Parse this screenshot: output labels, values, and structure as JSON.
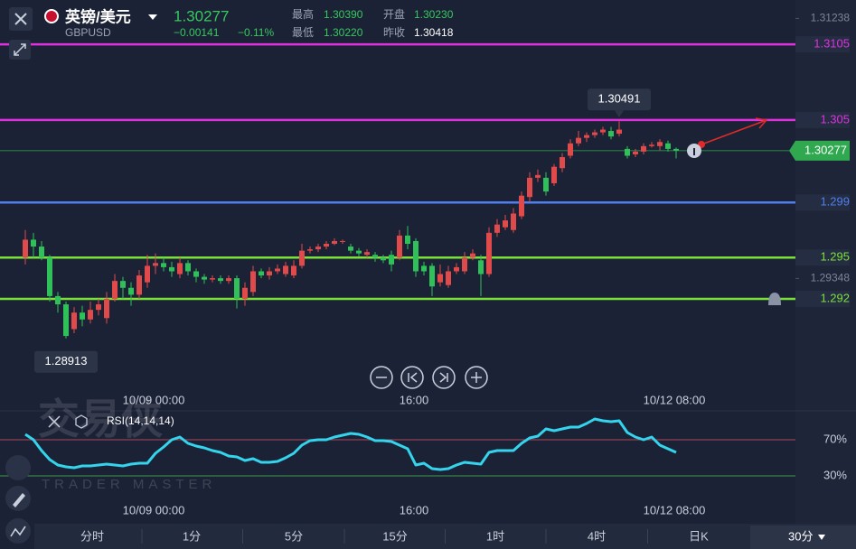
{
  "header": {
    "symbol": "英镑/美元",
    "code": "GBPUSD",
    "price": "1.30277",
    "change": "−0.00141",
    "change_pct": "−0.11%",
    "stats": [
      {
        "label": "最高",
        "value": "1.30390"
      },
      {
        "label": "开盘",
        "value": "1.30230"
      },
      {
        "label": "最低",
        "value": "1.30220"
      },
      {
        "label": "昨收",
        "value": "1.30418"
      }
    ]
  },
  "chart_data": {
    "type": "candlestick",
    "categories": [
      null,
      null,
      null,
      null,
      null,
      null,
      null,
      null,
      null,
      null,
      null,
      null,
      null,
      null,
      null,
      null,
      "10/09 00:00",
      null,
      null,
      null,
      null,
      null,
      null,
      null,
      null,
      null,
      null,
      null,
      null,
      null,
      null,
      null,
      null,
      null,
      null,
      null,
      null,
      null,
      null,
      null,
      null,
      null,
      null,
      null,
      null,
      null,
      null,
      null,
      "16:00",
      null,
      null,
      null,
      null,
      null,
      null,
      null,
      null,
      null,
      null,
      null,
      null,
      null,
      null,
      null,
      null,
      null,
      null,
      null,
      null,
      null,
      null,
      null,
      null,
      null,
      null,
      null,
      null,
      null,
      null,
      null,
      "10/12 08:00"
    ],
    "open": [
      1.295,
      1.2963,
      1.2958,
      1.295,
      1.2922,
      1.2916,
      1.2898,
      1.291,
      1.2905,
      1.2912,
      1.2906,
      1.292,
      1.2933,
      1.2928,
      1.2923,
      1.2932,
      1.2944,
      1.2946,
      1.2943,
      1.2938,
      1.2946,
      1.294,
      1.2936,
      1.2934,
      1.2935,
      1.2933,
      1.2935,
      1.292,
      1.2925,
      1.294,
      1.2937,
      1.294,
      1.2938,
      1.2937,
      1.2944,
      1.2955,
      1.2956,
      1.2958,
      1.296,
      1.2962,
      1.2958,
      1.2955,
      1.2952,
      1.2952,
      1.295,
      1.2952,
      1.295,
      1.2966,
      1.2962,
      1.2944,
      1.2944,
      1.2932,
      1.293,
      1.294,
      1.294,
      1.295,
      1.2948,
      1.2938,
      1.2968,
      1.2972,
      1.297,
      1.298,
      1.2994,
      1.3008,
      1.3008,
      1.3004,
      1.3015,
      1.3024,
      1.3033,
      1.3037,
      1.3039,
      1.3041,
      1.3042,
      1.304,
      1.3029,
      1.3025,
      1.3027,
      1.3031,
      1.3031,
      1.3033,
      1.3029
    ],
    "high": [
      1.297,
      1.2968,
      1.2962,
      1.2952,
      1.2925,
      1.2918,
      1.2914,
      1.2915,
      1.2918,
      1.292,
      1.2925,
      1.2938,
      1.2936,
      1.2932,
      1.2941,
      1.2952,
      1.2953,
      1.295,
      1.2947,
      1.295,
      1.2948,
      1.2942,
      1.2938,
      1.2937,
      1.2937,
      1.2937,
      1.2937,
      1.2932,
      1.2944,
      1.2942,
      1.2943,
      1.2945,
      1.2947,
      1.2948,
      1.296,
      1.2958,
      1.296,
      1.2962,
      1.2964,
      1.2963,
      1.296,
      1.2957,
      1.2956,
      1.2954,
      1.2952,
      1.2955,
      1.297,
      1.2973,
      1.2964,
      1.2947,
      1.2946,
      1.2945,
      1.2944,
      1.2946,
      1.2954,
      1.2956,
      1.2952,
      1.2972,
      1.2978,
      1.2981,
      1.2986,
      1.2998,
      1.3012,
      1.3014,
      1.3012,
      1.3018,
      1.3026,
      1.3036,
      1.3042,
      1.3041,
      1.3043,
      1.3045,
      1.3045,
      1.30491,
      1.3031,
      1.3029,
      1.3033,
      1.3034,
      1.3036,
      1.3035,
      1.303
    ],
    "low": [
      1.2945,
      1.295,
      1.2948,
      1.2918,
      1.291,
      1.28913,
      1.2895,
      1.29,
      1.2902,
      1.2908,
      1.2902,
      1.2918,
      1.292,
      1.2915,
      1.292,
      1.2928,
      1.2938,
      1.294,
      1.2936,
      1.2935,
      1.2937,
      1.2932,
      1.2931,
      1.2932,
      1.2931,
      1.2931,
      1.2913,
      1.2915,
      1.2922,
      1.2935,
      1.2934,
      1.2938,
      1.2936,
      1.2935,
      1.2942,
      1.2953,
      1.2954,
      1.2956,
      1.2959,
      1.296,
      1.2953,
      1.2951,
      1.295,
      1.2947,
      1.2946,
      1.294,
      1.2948,
      1.2956,
      1.2936,
      1.2937,
      1.2922,
      1.2929,
      1.2928,
      1.2938,
      1.2938,
      1.2948,
      1.2922,
      1.2936,
      1.2965,
      1.297,
      1.2968,
      1.2978,
      1.299,
      1.3005,
      1.2995,
      1.3002,
      1.3012,
      1.3022,
      1.3031,
      1.3034,
      1.3037,
      1.3039,
      1.3036,
      1.3038,
      1.3022,
      1.3023,
      1.3025,
      1.303,
      1.3028,
      1.3027,
      1.3022
    ],
    "close": [
      1.2963,
      1.2958,
      1.295,
      1.2922,
      1.2916,
      1.2893,
      1.291,
      1.2905,
      1.2912,
      1.2916,
      1.292,
      1.2933,
      1.2928,
      1.2923,
      1.2937,
      1.2944,
      1.2946,
      1.2943,
      1.294,
      1.2946,
      1.294,
      1.2936,
      1.2934,
      1.2935,
      1.2933,
      1.2935,
      1.292,
      1.2928,
      1.294,
      1.2937,
      1.294,
      1.2942,
      1.2944,
      1.2944,
      1.2955,
      1.2956,
      1.2958,
      1.296,
      1.2962,
      1.2962,
      1.2955,
      1.2953,
      1.2954,
      1.295,
      1.2948,
      1.2945,
      1.2966,
      1.296,
      1.294,
      1.294,
      1.2929,
      1.2938,
      1.294,
      1.2943,
      1.295,
      1.2953,
      1.2938,
      1.2968,
      1.2974,
      1.2977,
      1.2982,
      1.2995,
      1.3008,
      1.301,
      1.2998,
      1.3016,
      1.3023,
      1.3033,
      1.3037,
      1.3039,
      1.3041,
      1.3043,
      1.3038,
      1.3043,
      1.3024,
      1.3027,
      1.3031,
      1.3032,
      1.3034,
      1.3029,
      1.30277
    ],
    "up_color": "#e04a4a",
    "down_color": "#2fc05a",
    "ylim": [
      1.2855,
      1.31372
    ],
    "yticks": [
      1.31238,
      1.29348
    ],
    "levels": [
      {
        "value": 1.3105,
        "color": "#e030e0"
      },
      {
        "value": 1.305,
        "color": "#e030e0"
      },
      {
        "value": 1.299,
        "color": "#4f7ef0"
      },
      {
        "value": 1.295,
        "color": "#7be03a"
      },
      {
        "value": 1.292,
        "color": "#7be03a"
      }
    ],
    "last_price": 1.30277,
    "last_color": "#2fa84f",
    "high_label": 1.30491,
    "low_label": 1.28913,
    "rsi": {
      "title": "RSI(14,14,14)",
      "color": "#34d4ec",
      "ylim": [
        0,
        97
      ],
      "yticks": [
        {
          "value": 70,
          "label": "70%",
          "color": "#a8485a"
        },
        {
          "value": 30,
          "label": "30%",
          "color": "#3f9a4a"
        }
      ],
      "values": [
        76,
        70,
        58,
        48,
        42,
        40,
        39,
        41,
        41,
        42,
        43,
        42,
        41,
        43,
        44,
        44,
        55,
        62,
        70,
        73,
        66,
        63,
        61,
        58,
        56,
        52,
        51,
        47,
        49,
        45,
        45,
        46,
        50,
        55,
        64,
        69,
        70,
        70,
        73,
        75,
        77,
        76,
        73,
        69,
        69,
        68,
        64,
        60,
        42,
        44,
        38,
        37,
        38,
        42,
        45,
        44,
        43,
        56,
        58,
        58,
        58,
        66,
        72,
        74,
        82,
        80,
        82,
        84,
        84,
        88,
        93,
        91,
        90,
        91,
        78,
        73,
        70,
        73,
        64,
        60,
        56
      ]
    }
  },
  "timeframes": [
    "分时",
    "1分",
    "5分",
    "15分",
    "1时",
    "4时",
    "日K"
  ],
  "selected_timeframe": "30分",
  "watermark": {
    "name": "交易侠",
    "tagline": "TRADER MASTER"
  }
}
